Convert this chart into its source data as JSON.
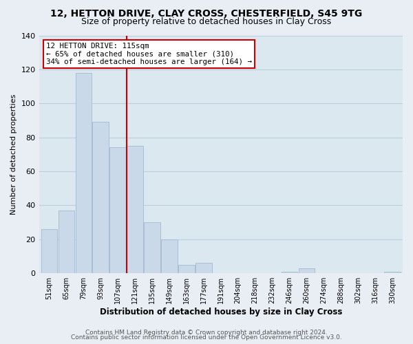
{
  "title": "12, HETTON DRIVE, CLAY CROSS, CHESTERFIELD, S45 9TG",
  "subtitle": "Size of property relative to detached houses in Clay Cross",
  "xlabel": "Distribution of detached houses by size in Clay Cross",
  "ylabel": "Number of detached properties",
  "bar_labels": [
    "51sqm",
    "65sqm",
    "79sqm",
    "93sqm",
    "107sqm",
    "121sqm",
    "135sqm",
    "149sqm",
    "163sqm",
    "177sqm",
    "191sqm",
    "204sqm",
    "218sqm",
    "232sqm",
    "246sqm",
    "260sqm",
    "274sqm",
    "288sqm",
    "302sqm",
    "316sqm",
    "330sqm"
  ],
  "bar_values": [
    26,
    37,
    118,
    89,
    74,
    75,
    30,
    20,
    5,
    6,
    0,
    0,
    0,
    0,
    1,
    3,
    0,
    0,
    0,
    0,
    1
  ],
  "bar_color": "#c9d9ea",
  "bar_edge_color": "#a8bfd4",
  "vline_x_index": 4.5,
  "annotation_title": "12 HETTON DRIVE: 115sqm",
  "annotation_line1": "← 65% of detached houses are smaller (310)",
  "annotation_line2": "34% of semi-detached houses are larger (164) →",
  "vline_color": "#cc0000",
  "ylim": [
    0,
    140
  ],
  "yticks": [
    0,
    20,
    40,
    60,
    80,
    100,
    120,
    140
  ],
  "footer1": "Contains HM Land Registry data © Crown copyright and database right 2024.",
  "footer2": "Contains public sector information licensed under the Open Government Licence v3.0.",
  "bg_color": "#e8eef4",
  "plot_bg_color": "#dce8f0",
  "annotation_box_color": "#ffffff",
  "annotation_box_edge": "#cc0000",
  "grid_color": "#b8cfe0",
  "title_fontsize": 10,
  "subtitle_fontsize": 9
}
